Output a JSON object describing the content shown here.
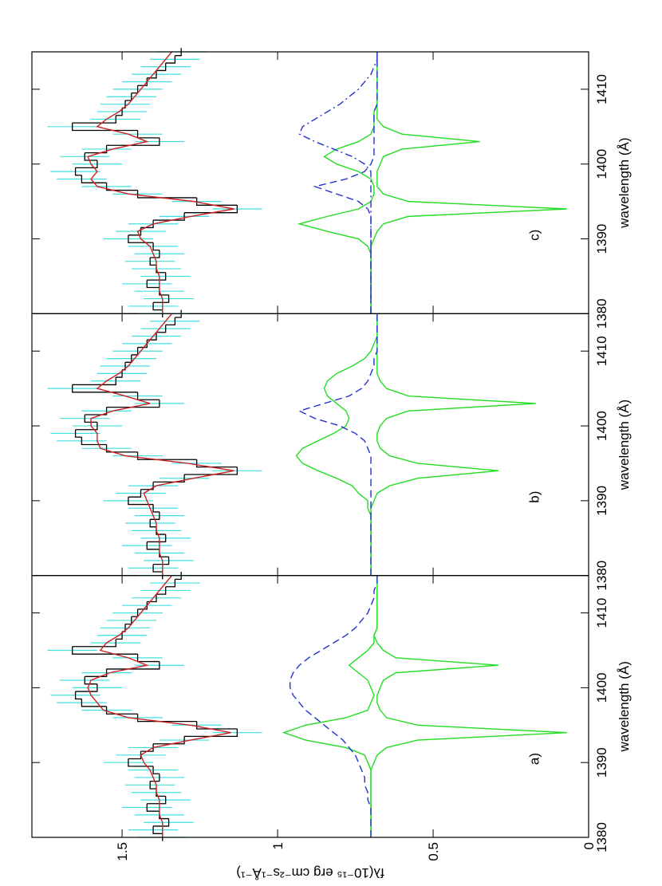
{
  "chart_data": [
    {
      "type": "line",
      "label": "a)",
      "xlabel": "wavelength (Å)",
      "ylabel": "fλ(10⁻¹⁵ erg cm⁻²s⁻¹Å⁻¹)",
      "show_ytick_labels": true,
      "x": [
        1380,
        1381,
        1382,
        1383,
        1384,
        1385,
        1386,
        1387,
        1388,
        1389,
        1390,
        1391,
        1392,
        1393,
        1394,
        1395,
        1396,
        1397,
        1398,
        1399,
        1400,
        1401,
        1402,
        1403,
        1404,
        1405,
        1406,
        1407,
        1408,
        1409,
        1410,
        1411,
        1412,
        1413,
        1414,
        1415
      ],
      "xlim": [
        1380,
        1415
      ],
      "xticks": [
        1380,
        1390,
        1400,
        1410
      ],
      "ylim": [
        0,
        1.79
      ],
      "yticks": [
        0,
        0.5,
        1,
        1.5
      ],
      "series": [
        {
          "style": "step",
          "color": "#000000",
          "error": 0.08,
          "error_color": "#40e0e0",
          "values": [
            1.37,
            1.4,
            1.35,
            1.38,
            1.42,
            1.36,
            1.39,
            1.41,
            1.38,
            1.4,
            1.48,
            1.44,
            1.4,
            1.3,
            1.13,
            1.26,
            1.45,
            1.55,
            1.63,
            1.65,
            1.58,
            1.62,
            1.55,
            1.38,
            1.45,
            1.66,
            1.52,
            1.5,
            1.49,
            1.47,
            1.45,
            1.42,
            1.39,
            1.36,
            1.33,
            1.31
          ]
        },
        {
          "style": "solid",
          "color": "#cc2020",
          "values": [
            1.37,
            1.37,
            1.37,
            1.38,
            1.38,
            1.38,
            1.39,
            1.39,
            1.4,
            1.41,
            1.43,
            1.44,
            1.4,
            1.28,
            1.15,
            1.28,
            1.48,
            1.56,
            1.58,
            1.6,
            1.61,
            1.6,
            1.54,
            1.42,
            1.48,
            1.57,
            1.55,
            1.51,
            1.48,
            1.46,
            1.44,
            1.42,
            1.4,
            1.38,
            1.36,
            1.34
          ]
        },
        {
          "style": "solid",
          "color": "#22dd22",
          "values": [
            0.7,
            0.7,
            0.7,
            0.7,
            0.7,
            0.7,
            0.7,
            0.7,
            0.7,
            0.7,
            0.71,
            0.72,
            0.78,
            0.91,
            0.98,
            0.91,
            0.78,
            0.71,
            0.7,
            0.69,
            0.7,
            0.71,
            0.74,
            0.77,
            0.74,
            0.71,
            0.69,
            0.69,
            0.68,
            0.68,
            0.68,
            0.68,
            0.68,
            0.68,
            0.68,
            0.68
          ]
        },
        {
          "style": "solid",
          "color": "#22dd22",
          "values": [
            0.7,
            0.7,
            0.7,
            0.7,
            0.7,
            0.7,
            0.7,
            0.7,
            0.7,
            0.7,
            0.69,
            0.68,
            0.65,
            0.55,
            0.07,
            0.55,
            0.65,
            0.67,
            0.68,
            0.68,
            0.67,
            0.66,
            0.62,
            0.29,
            0.62,
            0.66,
            0.68,
            0.69,
            0.68,
            0.68,
            0.68,
            0.68,
            0.68,
            0.68,
            0.68,
            0.68
          ]
        },
        {
          "style": "dashed",
          "color": "#2233cc",
          "values": [
            0.7,
            0.7,
            0.7,
            0.7,
            0.7,
            0.71,
            0.71,
            0.72,
            0.72,
            0.73,
            0.74,
            0.75,
            0.77,
            0.79,
            0.82,
            0.85,
            0.88,
            0.91,
            0.93,
            0.95,
            0.96,
            0.96,
            0.95,
            0.93,
            0.9,
            0.86,
            0.82,
            0.78,
            0.75,
            0.73,
            0.71,
            0.7,
            0.69,
            0.69,
            0.68,
            0.68
          ]
        }
      ]
    },
    {
      "type": "line",
      "label": "b)",
      "xlabel": "wavelength (Å)",
      "x": [
        1380,
        1381,
        1382,
        1383,
        1384,
        1385,
        1386,
        1387,
        1388,
        1389,
        1390,
        1391,
        1392,
        1393,
        1394,
        1395,
        1396,
        1397,
        1398,
        1399,
        1400,
        1401,
        1402,
        1403,
        1404,
        1405,
        1406,
        1407,
        1408,
        1409,
        1410,
        1411,
        1412,
        1413,
        1414,
        1415
      ],
      "xlim": [
        1380,
        1415
      ],
      "xticks": [
        1380,
        1390,
        1400,
        1410
      ],
      "ylim": [
        0,
        1.79
      ],
      "yticks": [
        0,
        0.5,
        1,
        1.5
      ],
      "series": [
        {
          "style": "step",
          "color": "#000000",
          "error": 0.08,
          "error_color": "#40e0e0",
          "values": [
            1.37,
            1.4,
            1.35,
            1.38,
            1.42,
            1.36,
            1.39,
            1.41,
            1.38,
            1.4,
            1.48,
            1.44,
            1.4,
            1.3,
            1.13,
            1.26,
            1.45,
            1.55,
            1.63,
            1.65,
            1.58,
            1.62,
            1.55,
            1.38,
            1.45,
            1.66,
            1.52,
            1.5,
            1.49,
            1.47,
            1.45,
            1.42,
            1.39,
            1.36,
            1.33,
            1.31
          ]
        },
        {
          "style": "solid",
          "color": "#cc2020",
          "values": [
            1.37,
            1.37,
            1.37,
            1.38,
            1.38,
            1.38,
            1.39,
            1.39,
            1.4,
            1.41,
            1.42,
            1.43,
            1.39,
            1.27,
            1.14,
            1.29,
            1.49,
            1.57,
            1.58,
            1.58,
            1.6,
            1.6,
            1.53,
            1.41,
            1.49,
            1.58,
            1.55,
            1.51,
            1.48,
            1.46,
            1.44,
            1.42,
            1.4,
            1.38,
            1.36,
            1.34
          ]
        },
        {
          "style": "solid",
          "color": "#22dd22",
          "values": [
            0.7,
            0.7,
            0.7,
            0.7,
            0.7,
            0.7,
            0.7,
            0.7,
            0.7,
            0.71,
            0.71,
            0.74,
            0.76,
            0.81,
            0.87,
            0.92,
            0.94,
            0.92,
            0.87,
            0.82,
            0.78,
            0.77,
            0.78,
            0.81,
            0.84,
            0.85,
            0.84,
            0.81,
            0.76,
            0.72,
            0.7,
            0.69,
            0.68,
            0.68,
            0.68,
            0.68
          ]
        },
        {
          "style": "solid",
          "color": "#22dd22",
          "values": [
            0.7,
            0.7,
            0.7,
            0.7,
            0.7,
            0.7,
            0.7,
            0.7,
            0.7,
            0.7,
            0.69,
            0.68,
            0.64,
            0.55,
            0.29,
            0.55,
            0.64,
            0.67,
            0.68,
            0.68,
            0.67,
            0.65,
            0.58,
            0.17,
            0.58,
            0.65,
            0.67,
            0.68,
            0.68,
            0.68,
            0.68,
            0.68,
            0.68,
            0.68,
            0.68,
            0.68
          ]
        },
        {
          "style": "dashed",
          "color": "#2233cc",
          "values": [
            0.7,
            0.7,
            0.7,
            0.7,
            0.7,
            0.7,
            0.7,
            0.7,
            0.7,
            0.7,
            0.7,
            0.7,
            0.7,
            0.7,
            0.7,
            0.7,
            0.7,
            0.71,
            0.72,
            0.75,
            0.8,
            0.88,
            0.93,
            0.85,
            0.77,
            0.73,
            0.71,
            0.7,
            0.69,
            0.69,
            0.68,
            0.68,
            0.68,
            0.68,
            0.68,
            0.68
          ]
        }
      ]
    },
    {
      "type": "line",
      "label": "c)",
      "xlabel": "wavelength (Å)",
      "x": [
        1380,
        1381,
        1382,
        1383,
        1384,
        1385,
        1386,
        1387,
        1388,
        1389,
        1390,
        1391,
        1392,
        1393,
        1394,
        1395,
        1396,
        1397,
        1398,
        1399,
        1400,
        1401,
        1402,
        1403,
        1404,
        1405,
        1406,
        1407,
        1408,
        1409,
        1410,
        1411,
        1412,
        1413,
        1414,
        1415
      ],
      "xlim": [
        1380,
        1415
      ],
      "xticks": [
        1380,
        1390,
        1400,
        1410
      ],
      "ylim": [
        0,
        1.79
      ],
      "yticks": [
        0,
        0.5,
        1,
        1.5
      ],
      "series": [
        {
          "style": "step",
          "color": "#000000",
          "error": 0.08,
          "error_color": "#40e0e0",
          "values": [
            1.37,
            1.4,
            1.35,
            1.38,
            1.42,
            1.36,
            1.39,
            1.41,
            1.38,
            1.4,
            1.48,
            1.44,
            1.4,
            1.3,
            1.13,
            1.26,
            1.45,
            1.55,
            1.63,
            1.65,
            1.58,
            1.62,
            1.55,
            1.38,
            1.45,
            1.66,
            1.52,
            1.5,
            1.49,
            1.47,
            1.45,
            1.42,
            1.39,
            1.36,
            1.33,
            1.31
          ]
        },
        {
          "style": "solid",
          "color": "#cc2020",
          "values": [
            1.37,
            1.37,
            1.37,
            1.38,
            1.38,
            1.38,
            1.39,
            1.39,
            1.4,
            1.41,
            1.44,
            1.45,
            1.4,
            1.28,
            1.14,
            1.27,
            1.48,
            1.58,
            1.6,
            1.58,
            1.6,
            1.61,
            1.53,
            1.42,
            1.48,
            1.58,
            1.55,
            1.51,
            1.48,
            1.46,
            1.44,
            1.42,
            1.4,
            1.38,
            1.36,
            1.34
          ]
        },
        {
          "style": "solid",
          "color": "#22dd22",
          "values": [
            0.7,
            0.7,
            0.7,
            0.7,
            0.7,
            0.7,
            0.7,
            0.7,
            0.7,
            0.71,
            0.74,
            0.84,
            0.93,
            0.84,
            0.74,
            0.7,
            0.69,
            0.69,
            0.7,
            0.74,
            0.81,
            0.85,
            0.81,
            0.74,
            0.7,
            0.69,
            0.69,
            0.69,
            0.68,
            0.68,
            0.68,
            0.68,
            0.68,
            0.68,
            0.68,
            0.68
          ]
        },
        {
          "style": "solid",
          "color": "#22dd22",
          "values": [
            0.7,
            0.7,
            0.7,
            0.7,
            0.7,
            0.7,
            0.7,
            0.7,
            0.7,
            0.7,
            0.69,
            0.68,
            0.66,
            0.58,
            0.07,
            0.58,
            0.66,
            0.68,
            0.68,
            0.68,
            0.67,
            0.66,
            0.6,
            0.35,
            0.6,
            0.66,
            0.68,
            0.68,
            0.68,
            0.68,
            0.68,
            0.68,
            0.68,
            0.68,
            0.68,
            0.68
          ]
        },
        {
          "style": "dashed",
          "color": "#2233cc",
          "values": [
            0.7,
            0.7,
            0.7,
            0.7,
            0.7,
            0.7,
            0.7,
            0.7,
            0.7,
            0.7,
            0.7,
            0.7,
            0.7,
            0.7,
            0.71,
            0.74,
            0.81,
            0.88,
            0.78,
            0.72,
            0.7,
            0.69,
            0.69,
            0.69,
            0.69,
            0.69,
            0.69,
            0.69,
            0.68,
            0.68,
            0.68,
            0.68,
            0.68,
            0.68,
            0.68,
            0.68
          ]
        },
        {
          "style": "dashdot",
          "color": "#2233cc",
          "values": [
            0.7,
            0.7,
            0.7,
            0.7,
            0.7,
            0.7,
            0.7,
            0.7,
            0.7,
            0.7,
            0.7,
            0.7,
            0.7,
            0.7,
            0.7,
            0.7,
            0.7,
            0.7,
            0.7,
            0.7,
            0.72,
            0.76,
            0.82,
            0.88,
            0.93,
            0.92,
            0.88,
            0.84,
            0.8,
            0.77,
            0.74,
            0.72,
            0.7,
            0.69,
            0.68,
            0.68
          ]
        }
      ]
    }
  ]
}
